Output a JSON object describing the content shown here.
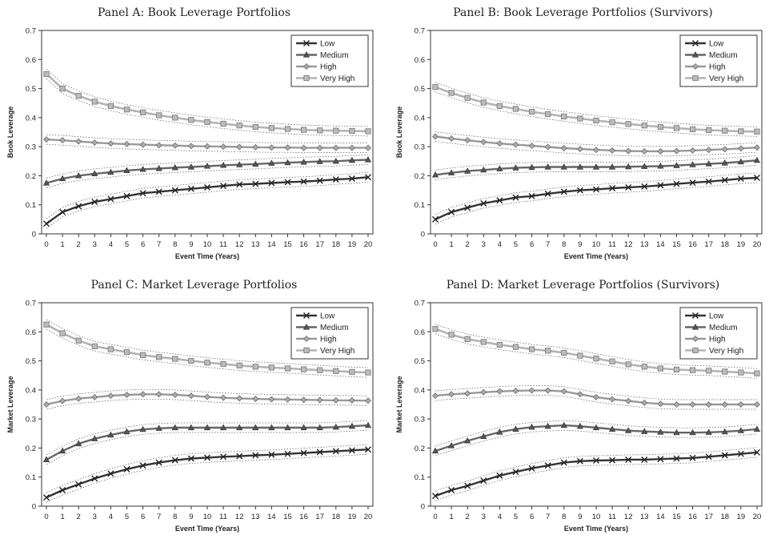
{
  "chart_data": [
    {
      "type": "line",
      "title": "Panel A: Book Leverage Portfolios",
      "xlabel": "Event Time (Years)",
      "ylabel": "Book Leverage",
      "ylim": [
        0,
        0.7
      ],
      "yticks": [
        "0",
        "0.1",
        "0.2",
        "0.3",
        "0.4",
        "0.5",
        "0.6",
        "0.7"
      ],
      "x": [
        0,
        1,
        2,
        3,
        4,
        5,
        6,
        7,
        8,
        9,
        10,
        11,
        12,
        13,
        14,
        15,
        16,
        17,
        18,
        19,
        20
      ],
      "legend_position": "top-right",
      "series": [
        {
          "name": "Low",
          "marker": "x",
          "values": [
            0.035,
            0.075,
            0.095,
            0.11,
            0.12,
            0.13,
            0.14,
            0.145,
            0.15,
            0.155,
            0.16,
            0.165,
            0.17,
            0.172,
            0.175,
            0.178,
            0.18,
            0.183,
            0.187,
            0.19,
            0.195
          ]
        },
        {
          "name": "Medium",
          "marker": "triangle",
          "values": [
            0.175,
            0.19,
            0.2,
            0.207,
            0.212,
            0.218,
            0.222,
            0.225,
            0.228,
            0.23,
            0.233,
            0.236,
            0.238,
            0.24,
            0.243,
            0.245,
            0.247,
            0.249,
            0.25,
            0.253,
            0.255
          ]
        },
        {
          "name": "High",
          "marker": "diamond",
          "values": [
            0.325,
            0.322,
            0.318,
            0.314,
            0.311,
            0.309,
            0.307,
            0.305,
            0.304,
            0.302,
            0.301,
            0.3,
            0.299,
            0.298,
            0.297,
            0.297,
            0.296,
            0.296,
            0.296,
            0.296,
            0.296
          ]
        },
        {
          "name": "Very High",
          "marker": "square",
          "values": [
            0.55,
            0.5,
            0.475,
            0.455,
            0.44,
            0.428,
            0.418,
            0.408,
            0.4,
            0.392,
            0.385,
            0.379,
            0.373,
            0.368,
            0.364,
            0.361,
            0.358,
            0.356,
            0.355,
            0.354,
            0.353
          ]
        }
      ]
    },
    {
      "type": "line",
      "title": "Panel B: Book Leverage Portfolios (Survivors)",
      "xlabel": "Event Time (Years)",
      "ylabel": "Book Leverage",
      "ylim": [
        0,
        0.7
      ],
      "yticks": [
        "0",
        "0.1",
        "0.2",
        "0.3",
        "0.4",
        "0.5",
        "0.6",
        "0.7"
      ],
      "x": [
        0,
        1,
        2,
        3,
        4,
        5,
        6,
        7,
        8,
        9,
        10,
        11,
        12,
        13,
        14,
        15,
        16,
        17,
        18,
        19,
        20
      ],
      "legend_position": "top-right",
      "series": [
        {
          "name": "Low",
          "marker": "x",
          "values": [
            0.05,
            0.075,
            0.09,
            0.105,
            0.115,
            0.125,
            0.13,
            0.138,
            0.145,
            0.15,
            0.153,
            0.157,
            0.16,
            0.163,
            0.167,
            0.172,
            0.176,
            0.18,
            0.185,
            0.19,
            0.193
          ]
        },
        {
          "name": "Medium",
          "marker": "triangle",
          "values": [
            0.203,
            0.21,
            0.216,
            0.22,
            0.224,
            0.227,
            0.229,
            0.23,
            0.23,
            0.23,
            0.23,
            0.23,
            0.231,
            0.232,
            0.233,
            0.235,
            0.238,
            0.241,
            0.244,
            0.248,
            0.253
          ]
        },
        {
          "name": "High",
          "marker": "diamond",
          "values": [
            0.335,
            0.328,
            0.322,
            0.316,
            0.311,
            0.307,
            0.303,
            0.299,
            0.295,
            0.292,
            0.289,
            0.287,
            0.285,
            0.284,
            0.284,
            0.285,
            0.287,
            0.289,
            0.291,
            0.294,
            0.297
          ]
        },
        {
          "name": "Very High",
          "marker": "square",
          "values": [
            0.505,
            0.485,
            0.468,
            0.452,
            0.44,
            0.43,
            0.42,
            0.412,
            0.404,
            0.397,
            0.39,
            0.384,
            0.378,
            0.373,
            0.368,
            0.364,
            0.36,
            0.357,
            0.355,
            0.353,
            0.352
          ]
        }
      ]
    },
    {
      "type": "line",
      "title": "Panel C: Market Leverage Portfolios",
      "xlabel": "Event Time (Years)",
      "ylabel": "Market Leverage",
      "ylim": [
        0,
        0.7
      ],
      "yticks": [
        "0",
        "0.1",
        "0.2",
        "0.3",
        "0.4",
        "0.5",
        "0.6",
        "0.7"
      ],
      "x": [
        0,
        1,
        2,
        3,
        4,
        5,
        6,
        7,
        8,
        9,
        10,
        11,
        12,
        13,
        14,
        15,
        16,
        17,
        18,
        19,
        20
      ],
      "legend_position": "top-right",
      "series": [
        {
          "name": "Low",
          "marker": "x",
          "values": [
            0.03,
            0.055,
            0.075,
            0.095,
            0.112,
            0.127,
            0.14,
            0.15,
            0.158,
            0.164,
            0.167,
            0.17,
            0.172,
            0.175,
            0.177,
            0.18,
            0.183,
            0.186,
            0.189,
            0.192,
            0.195
          ]
        },
        {
          "name": "Medium",
          "marker": "triangle",
          "values": [
            0.16,
            0.19,
            0.215,
            0.232,
            0.245,
            0.256,
            0.264,
            0.268,
            0.27,
            0.27,
            0.27,
            0.27,
            0.27,
            0.27,
            0.27,
            0.27,
            0.27,
            0.27,
            0.272,
            0.275,
            0.278
          ]
        },
        {
          "name": "High",
          "marker": "diamond",
          "values": [
            0.35,
            0.362,
            0.37,
            0.375,
            0.38,
            0.383,
            0.385,
            0.385,
            0.383,
            0.38,
            0.376,
            0.373,
            0.371,
            0.369,
            0.368,
            0.367,
            0.366,
            0.365,
            0.364,
            0.364,
            0.363
          ]
        },
        {
          "name": "Very High",
          "marker": "square",
          "values": [
            0.625,
            0.595,
            0.57,
            0.55,
            0.54,
            0.53,
            0.52,
            0.513,
            0.507,
            0.5,
            0.494,
            0.489,
            0.484,
            0.48,
            0.477,
            0.474,
            0.471,
            0.468,
            0.465,
            0.462,
            0.46
          ]
        }
      ]
    },
    {
      "type": "line",
      "title": "Panel D: Market Leverage Portfolios (Survivors)",
      "xlabel": "Event Time (Years)",
      "ylabel": "Market Leverage",
      "ylim": [
        0,
        0.7
      ],
      "yticks": [
        "0",
        "0.1",
        "0.2",
        "0.3",
        "0.4",
        "0.5",
        "0.6",
        "0.7"
      ],
      "x": [
        0,
        1,
        2,
        3,
        4,
        5,
        6,
        7,
        8,
        9,
        10,
        11,
        12,
        13,
        14,
        15,
        16,
        17,
        18,
        19,
        20
      ],
      "legend_position": "top-right",
      "series": [
        {
          "name": "Low",
          "marker": "x",
          "values": [
            0.035,
            0.055,
            0.07,
            0.088,
            0.105,
            0.118,
            0.13,
            0.14,
            0.15,
            0.155,
            0.157,
            0.158,
            0.16,
            0.16,
            0.162,
            0.164,
            0.166,
            0.17,
            0.175,
            0.18,
            0.185
          ]
        },
        {
          "name": "Medium",
          "marker": "triangle",
          "values": [
            0.19,
            0.208,
            0.225,
            0.24,
            0.255,
            0.265,
            0.272,
            0.275,
            0.278,
            0.275,
            0.27,
            0.265,
            0.26,
            0.257,
            0.255,
            0.253,
            0.253,
            0.254,
            0.256,
            0.26,
            0.265
          ]
        },
        {
          "name": "High",
          "marker": "diamond",
          "values": [
            0.38,
            0.385,
            0.388,
            0.392,
            0.395,
            0.397,
            0.398,
            0.398,
            0.395,
            0.385,
            0.375,
            0.368,
            0.362,
            0.356,
            0.352,
            0.35,
            0.35,
            0.35,
            0.35,
            0.35,
            0.35
          ]
        },
        {
          "name": "Very High",
          "marker": "square",
          "values": [
            0.61,
            0.59,
            0.575,
            0.565,
            0.555,
            0.548,
            0.54,
            0.535,
            0.528,
            0.518,
            0.508,
            0.498,
            0.488,
            0.48,
            0.474,
            0.47,
            0.468,
            0.466,
            0.463,
            0.46,
            0.457
          ]
        }
      ]
    }
  ]
}
